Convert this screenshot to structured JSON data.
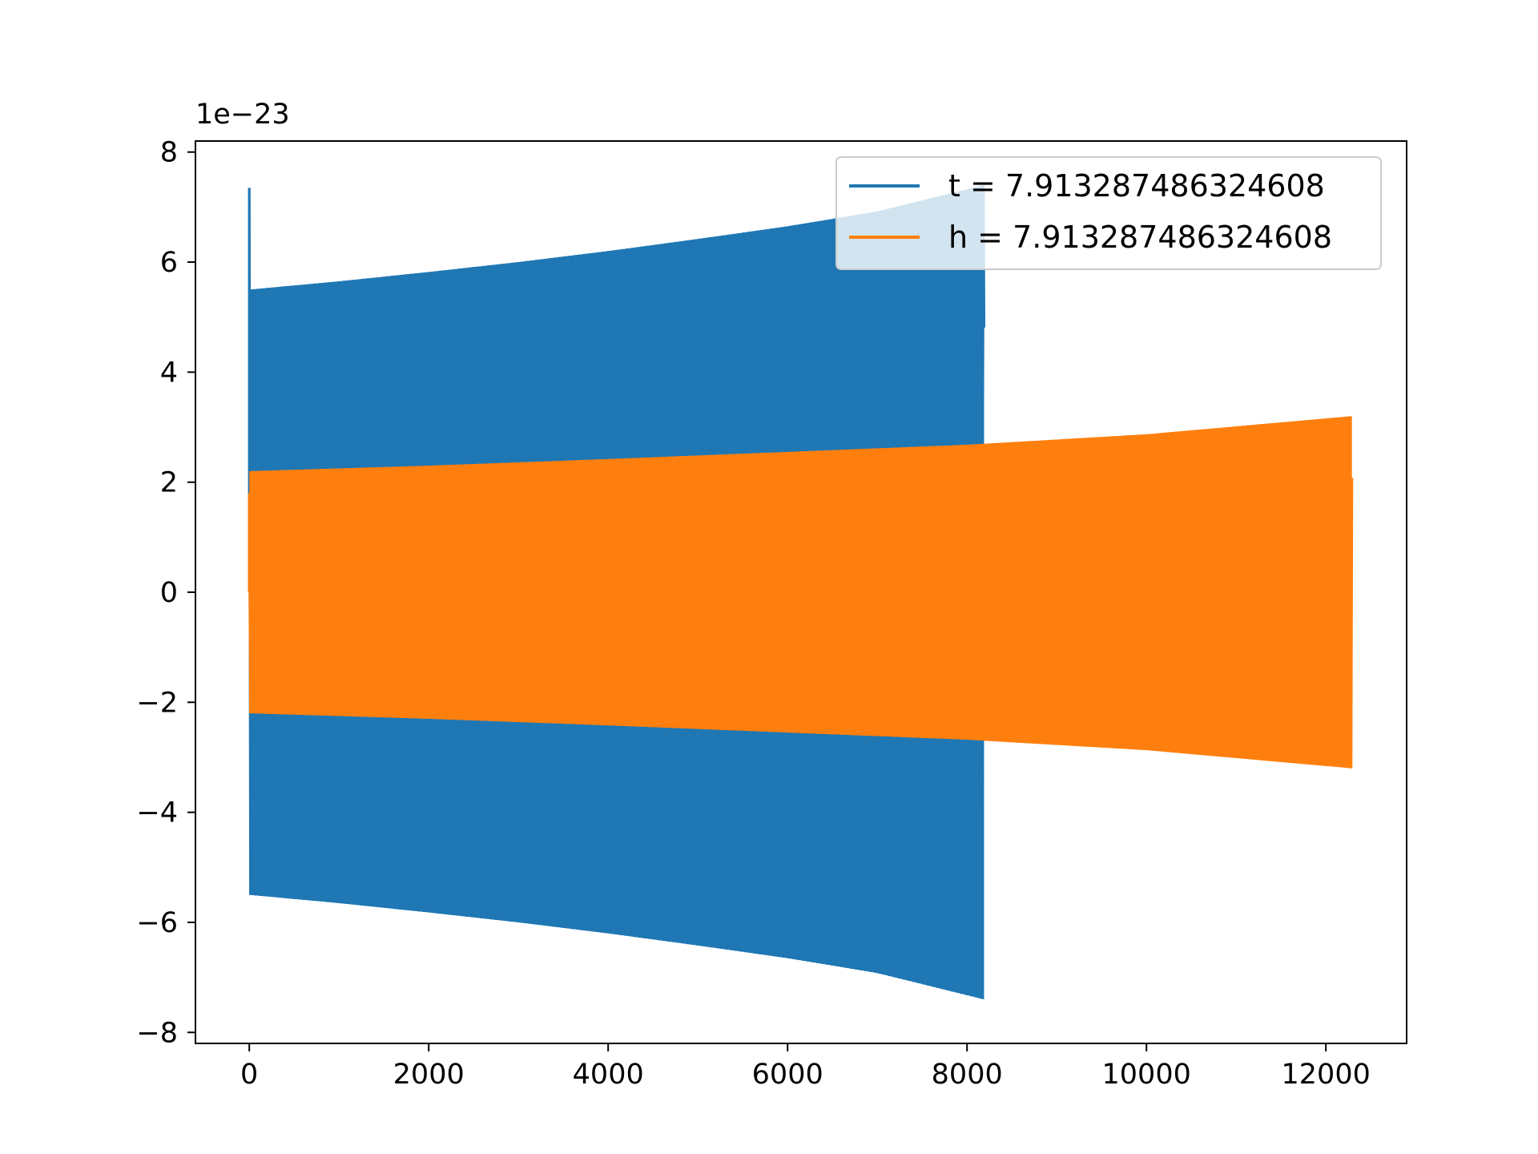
{
  "chart_data": {
    "type": "line",
    "title": "",
    "xlabel": "",
    "ylabel": "",
    "y_offset_label": "1e−23",
    "xlim": [
      -600,
      12900
    ],
    "ylim": [
      -8.2,
      8.2
    ],
    "x_ticks": [
      {
        "value": 0,
        "label": "0"
      },
      {
        "value": 2000,
        "label": "2000"
      },
      {
        "value": 4000,
        "label": "4000"
      },
      {
        "value": 6000,
        "label": "6000"
      },
      {
        "value": 8000,
        "label": "8000"
      },
      {
        "value": 10000,
        "label": "10000"
      },
      {
        "value": 12000,
        "label": "12000"
      }
    ],
    "y_ticks": [
      {
        "value": 8,
        "label": "8"
      },
      {
        "value": 6,
        "label": "6"
      },
      {
        "value": 4,
        "label": "4"
      },
      {
        "value": 2,
        "label": "2"
      },
      {
        "value": 0,
        "label": "0"
      },
      {
        "value": -2,
        "label": "−2"
      },
      {
        "value": -4,
        "label": "−4"
      },
      {
        "value": -6,
        "label": "−6"
      },
      {
        "value": -8,
        "label": "−8"
      }
    ],
    "grid": false,
    "legend_position": "top-right",
    "series": [
      {
        "name": "t = 7.913287486324608",
        "color": "#1f77b4",
        "description": "dense oscillation, envelope grows from ±5.5 to ±7.4 (×1e-23)",
        "x_start": 0,
        "x_end": 8190,
        "initial_spike": 7.35,
        "envelope": [
          {
            "x": 0,
            "upper": 5.5,
            "lower": -5.5
          },
          {
            "x": 1000,
            "upper": 5.65,
            "lower": -5.65
          },
          {
            "x": 2000,
            "upper": 5.82,
            "lower": -5.82
          },
          {
            "x": 3000,
            "upper": 6.0,
            "lower": -6.0
          },
          {
            "x": 4000,
            "upper": 6.2,
            "lower": -6.2
          },
          {
            "x": 5000,
            "upper": 6.42,
            "lower": -6.42
          },
          {
            "x": 6000,
            "upper": 6.65,
            "lower": -6.65
          },
          {
            "x": 7000,
            "upper": 6.92,
            "lower": -6.92
          },
          {
            "x": 8190,
            "upper": 7.4,
            "lower": -7.4
          }
        ]
      },
      {
        "name": "h = 7.913287486324608",
        "color": "#ff7f0e",
        "description": "dense oscillation, envelope grows from ±2.2 to ±3.2 (×1e-23)",
        "x_start": 0,
        "x_end": 12290,
        "initial_spike": 1.8,
        "envelope": [
          {
            "x": 0,
            "upper": 2.2,
            "lower": -2.2
          },
          {
            "x": 2000,
            "upper": 2.3,
            "lower": -2.3
          },
          {
            "x": 4000,
            "upper": 2.42,
            "lower": -2.42
          },
          {
            "x": 6000,
            "upper": 2.55,
            "lower": -2.55
          },
          {
            "x": 8000,
            "upper": 2.68,
            "lower": -2.68
          },
          {
            "x": 10000,
            "upper": 2.87,
            "lower": -2.87
          },
          {
            "x": 12290,
            "upper": 3.2,
            "lower": -3.2
          }
        ]
      }
    ]
  }
}
